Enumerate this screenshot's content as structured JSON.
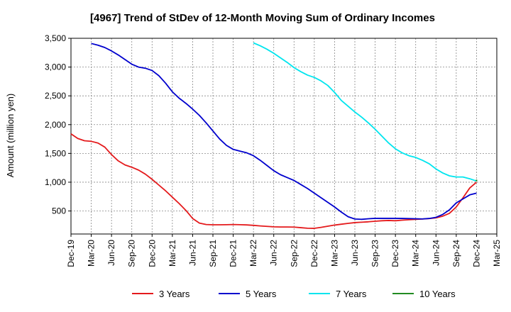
{
  "chart_data": {
    "type": "line",
    "title": "[4967]  Trend of StDev of 12-Month Moving Sum of Ordinary Incomes",
    "xlabel": "",
    "ylabel": "Amount (million yen)",
    "ylim": [
      100,
      3500
    ],
    "yticks": [
      500,
      1000,
      1500,
      2000,
      2500,
      3000,
      3500
    ],
    "ytick_labels": [
      "500",
      "1,000",
      "1,500",
      "2,000",
      "2,500",
      "3,000",
      "3,500"
    ],
    "xlim": [
      "2019-12",
      "2025-03"
    ],
    "xtick_labels": [
      "Dec-19",
      "Mar-20",
      "Jun-20",
      "Sep-20",
      "Dec-20",
      "Mar-21",
      "Jun-21",
      "Sep-21",
      "Dec-21",
      "Mar-22",
      "Jun-22",
      "Sep-22",
      "Dec-22",
      "Mar-23",
      "Jun-23",
      "Sep-23",
      "Dec-23",
      "Mar-24",
      "Jun-24",
      "Sep-24",
      "Dec-24",
      "Mar-25"
    ],
    "grid": true,
    "legend_position": "bottom",
    "series": [
      {
        "name": "3 Years",
        "color": "#e41a1c",
        "x": [
          "2019-12",
          "2020-01",
          "2020-02",
          "2020-03",
          "2020-04",
          "2020-05",
          "2020-06",
          "2020-07",
          "2020-08",
          "2020-09",
          "2020-10",
          "2020-11",
          "2020-12",
          "2021-01",
          "2021-02",
          "2021-03",
          "2021-04",
          "2021-05",
          "2021-06",
          "2021-07",
          "2021-08",
          "2021-09",
          "2021-10",
          "2021-11",
          "2021-12",
          "2022-01",
          "2022-02",
          "2022-03",
          "2022-04",
          "2022-05",
          "2022-06",
          "2022-07",
          "2022-08",
          "2022-09",
          "2022-10",
          "2022-11",
          "2022-12",
          "2023-01",
          "2023-02",
          "2023-03",
          "2023-04",
          "2023-05",
          "2023-06",
          "2023-07",
          "2023-08",
          "2023-09",
          "2023-10",
          "2023-11",
          "2023-12",
          "2024-01",
          "2024-02",
          "2024-03",
          "2024-04",
          "2024-05",
          "2024-06",
          "2024-07",
          "2024-08",
          "2024-09",
          "2024-10",
          "2024-11",
          "2024-12"
        ],
        "y": [
          1840,
          1760,
          1720,
          1710,
          1680,
          1610,
          1480,
          1370,
          1300,
          1260,
          1210,
          1140,
          1050,
          950,
          850,
          740,
          630,
          510,
          370,
          290,
          265,
          260,
          260,
          262,
          265,
          262,
          258,
          250,
          240,
          232,
          225,
          222,
          222,
          220,
          210,
          200,
          198,
          215,
          235,
          255,
          270,
          285,
          298,
          305,
          312,
          322,
          330,
          335,
          330,
          340,
          348,
          355,
          360,
          368,
          380,
          410,
          460,
          570,
          730,
          900,
          1000
        ]
      },
      {
        "name": "5 Years",
        "color": "#0000cd",
        "x": [
          "2020-03",
          "2020-04",
          "2020-05",
          "2020-06",
          "2020-07",
          "2020-08",
          "2020-09",
          "2020-10",
          "2020-11",
          "2020-12",
          "2021-01",
          "2021-02",
          "2021-03",
          "2021-04",
          "2021-05",
          "2021-06",
          "2021-07",
          "2021-08",
          "2021-09",
          "2021-10",
          "2021-11",
          "2021-12",
          "2022-01",
          "2022-02",
          "2022-03",
          "2022-04",
          "2022-05",
          "2022-06",
          "2022-07",
          "2022-08",
          "2022-09",
          "2022-10",
          "2022-11",
          "2022-12",
          "2023-01",
          "2023-02",
          "2023-03",
          "2023-04",
          "2023-05",
          "2023-06",
          "2023-07",
          "2023-08",
          "2023-09",
          "2023-10",
          "2023-11",
          "2023-12",
          "2024-01",
          "2024-02",
          "2024-03",
          "2024-04",
          "2024-05",
          "2024-06",
          "2024-07",
          "2024-08",
          "2024-09",
          "2024-10",
          "2024-11",
          "2024-12"
        ],
        "y": [
          3410,
          3380,
          3340,
          3280,
          3210,
          3130,
          3050,
          3000,
          2980,
          2940,
          2850,
          2720,
          2570,
          2460,
          2370,
          2270,
          2160,
          2030,
          1890,
          1750,
          1640,
          1570,
          1540,
          1510,
          1460,
          1380,
          1290,
          1200,
          1130,
          1080,
          1030,
          960,
          890,
          810,
          730,
          650,
          570,
          480,
          400,
          360,
          355,
          365,
          372,
          372,
          372,
          372,
          370,
          368,
          365,
          362,
          370,
          390,
          440,
          520,
          640,
          710,
          780,
          810
        ]
      },
      {
        "name": "7 Years",
        "color": "#00e5ee",
        "x": [
          "2022-03",
          "2022-04",
          "2022-05",
          "2022-06",
          "2022-07",
          "2022-08",
          "2022-09",
          "2022-10",
          "2022-11",
          "2022-12",
          "2023-01",
          "2023-02",
          "2023-03",
          "2023-04",
          "2023-05",
          "2023-06",
          "2023-07",
          "2023-08",
          "2023-09",
          "2023-10",
          "2023-11",
          "2023-12",
          "2024-01",
          "2024-02",
          "2024-03",
          "2024-04",
          "2024-05",
          "2024-06",
          "2024-07",
          "2024-08",
          "2024-09",
          "2024-10",
          "2024-11",
          "2024-12"
        ],
        "y": [
          3420,
          3370,
          3310,
          3240,
          3160,
          3080,
          2990,
          2920,
          2860,
          2820,
          2760,
          2680,
          2560,
          2420,
          2320,
          2220,
          2130,
          2030,
          1920,
          1800,
          1680,
          1580,
          1510,
          1460,
          1430,
          1380,
          1320,
          1230,
          1160,
          1110,
          1090,
          1090,
          1060,
          1020
        ]
      },
      {
        "name": "10 Years",
        "color": "#228b22",
        "x": [
          "2024-12"
        ],
        "y": [
          1030
        ]
      }
    ]
  }
}
